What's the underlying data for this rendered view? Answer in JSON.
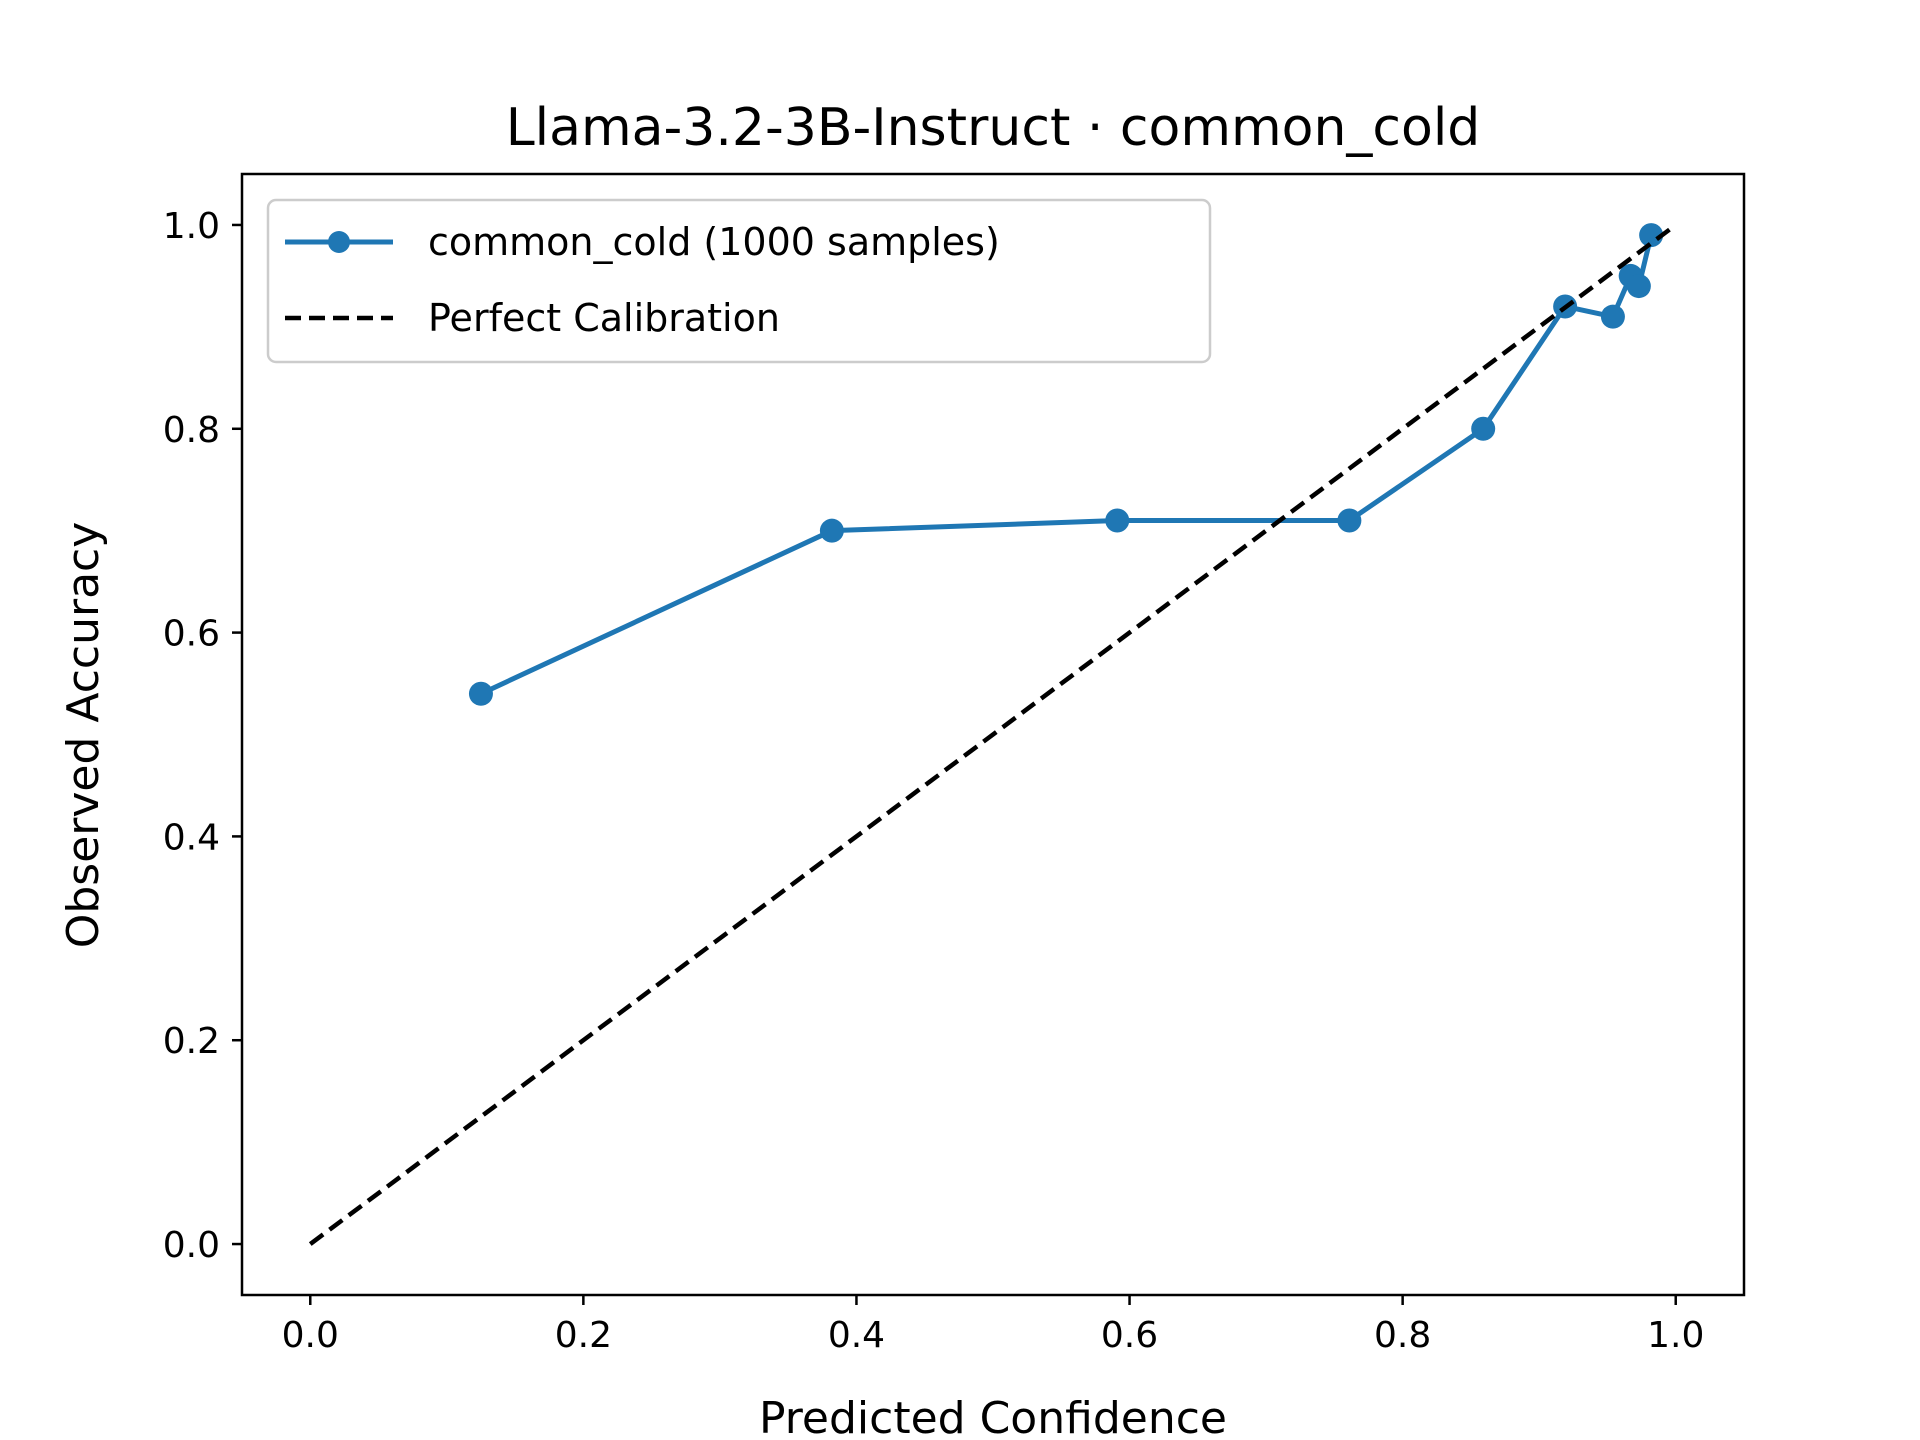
{
  "chart_data": {
    "type": "line",
    "title": "Llama-3.2-3B-Instruct · common_cold",
    "xlabel": "Predicted Confidence",
    "ylabel": "Observed Accuracy",
    "xlim": [
      -0.05,
      1.05
    ],
    "ylim": [
      -0.05,
      1.05
    ],
    "xticks": [
      0.0,
      0.2,
      0.4,
      0.6,
      0.8,
      1.0
    ],
    "xtick_labels": [
      "0.0",
      "0.2",
      "0.4",
      "0.6",
      "0.8",
      "1.0"
    ],
    "yticks": [
      0.0,
      0.2,
      0.4,
      0.6,
      0.8,
      1.0
    ],
    "ytick_labels": [
      "0.0",
      "0.2",
      "0.4",
      "0.6",
      "0.8",
      "1.0"
    ],
    "grid": false,
    "legend_position": "top-left",
    "series": [
      {
        "name": "common_cold (1000 samples)",
        "color": "#1f77b4",
        "style": "solid-with-circle-markers",
        "x": [
          0.125,
          0.382,
          0.591,
          0.761,
          0.859,
          0.919,
          0.954,
          0.967,
          0.973,
          0.982
        ],
        "y": [
          0.54,
          0.7,
          0.71,
          0.71,
          0.8,
          0.92,
          0.91,
          0.95,
          0.94,
          0.99
        ]
      },
      {
        "name": "Perfect Calibration",
        "color": "#000000",
        "style": "dashed",
        "x": [
          0.0,
          1.0
        ],
        "y": [
          0.0,
          1.0
        ]
      }
    ]
  }
}
